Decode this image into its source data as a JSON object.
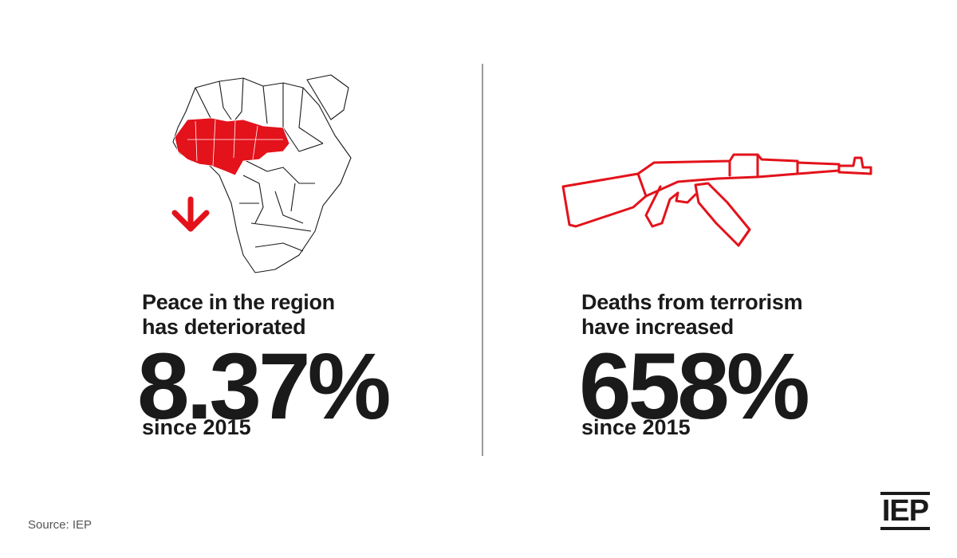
{
  "colors": {
    "accent": "#e3121b",
    "text": "#1a1a1a",
    "divider": "#9a9a9a"
  },
  "left_panel": {
    "icon": "africa-map-icon",
    "trend_icon": "down-arrow-icon",
    "headline_line1": "Peace in the region",
    "headline_line2": "has deteriorated",
    "value": "8.37%",
    "since": "since 2015"
  },
  "right_panel": {
    "icon": "rifle-icon",
    "headline_line1": "Deaths from terrorism",
    "headline_line2": "have increased",
    "value": "658%",
    "since": "since 2015"
  },
  "footer": {
    "source": "Source: IEP",
    "logo_text": "IEP"
  }
}
